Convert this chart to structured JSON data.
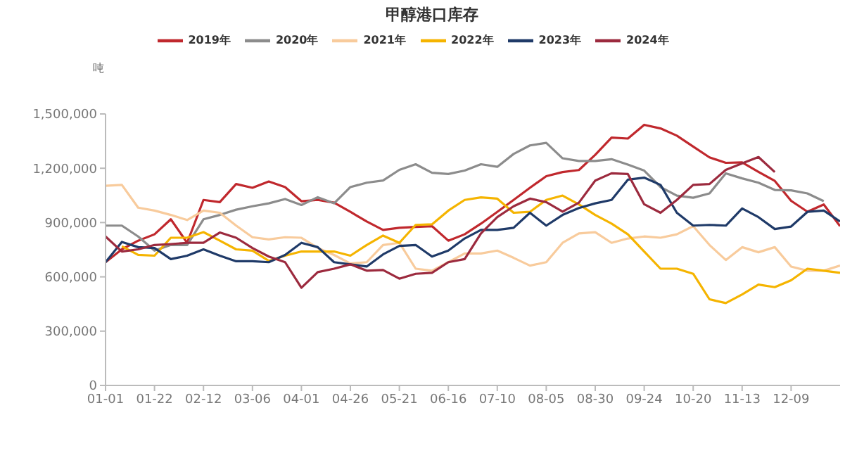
{
  "chart_data": {
    "type": "line",
    "title": "甲醇港口库存",
    "ylabel": "吨",
    "legend": "top",
    "categories": [
      "01-01",
      null,
      null,
      "01-22",
      null,
      null,
      "02-12",
      null,
      null,
      "03-06",
      null,
      null,
      "04-01",
      null,
      null,
      "04-26",
      null,
      null,
      "05-21",
      null,
      null,
      "06-16",
      null,
      null,
      "07-10",
      null,
      null,
      "08-05",
      null,
      null,
      "08-30",
      null,
      null,
      "09-24",
      null,
      null,
      "10-20",
      null,
      null,
      "11-13",
      null,
      null,
      "12-09",
      null,
      null,
      null
    ],
    "ylim": [
      0,
      1500000
    ],
    "yticks": [
      0,
      {
        "value": 300000,
        "label": "300,000"
      },
      {
        "value": 600000,
        "label": "600,000"
      },
      {
        "value": 900000,
        "label": "900,000"
      },
      {
        "value": 1200000,
        "label": "1,200,000"
      },
      {
        "value": 1500000,
        "label": "1,500,000"
      }
    ],
    "series": [
      {
        "name": "2019年",
        "color": "#c0282d",
        "values": [
          681000,
          752000,
          800000,
          835000,
          918000,
          788000,
          1025000,
          1013000,
          1113000,
          1092000,
          1127000,
          1096000,
          1018000,
          1025000,
          1010000,
          959000,
          906000,
          859000,
          871000,
          876000,
          880000,
          800000,
          835000,
          894000,
          959000,
          1025000,
          1092000,
          1156000,
          1179000,
          1190000,
          1274000,
          1369000,
          1364000,
          1440000,
          1420000,
          1380000,
          1320000,
          1260000,
          1230000,
          1232000,
          1180000,
          1130000,
          1020000,
          960000,
          1000000,
          880000
        ]
      },
      {
        "name": "2020年",
        "color": "#8c8c8c",
        "values": [
          883000,
          883000,
          823000,
          745000,
          776000,
          776000,
          918000,
          942000,
          971000,
          990000,
          1006000,
          1030000,
          997000,
          1040000,
          1006000,
          1096000,
          1120000,
          1132000,
          1191000,
          1222000,
          1175000,
          1168000,
          1187000,
          1222000,
          1208000,
          1279000,
          1326000,
          1340000,
          1255000,
          1240000,
          1240000,
          1250000,
          1220000,
          1187000,
          1096000,
          1049000,
          1037000,
          1061000,
          1172000,
          1144000,
          1120000,
          1080000,
          1078000,
          1061000,
          1018000,
          null
        ]
      },
      {
        "name": "2021年",
        "color": "#f8cb9c",
        "values": [
          1103000,
          1108000,
          982000,
          966000,
          942000,
          914000,
          966000,
          954000,
          883000,
          819000,
          807000,
          819000,
          816000,
          760000,
          721000,
          674000,
          681000,
          776000,
          788000,
          645000,
          634000,
          681000,
          729000,
          729000,
          745000,
          705000,
          662000,
          681000,
          788000,
          840000,
          847000,
          788000,
          812000,
          823000,
          816000,
          835000,
          880000,
          776000,
          693000,
          764000,
          736000,
          764000,
          657000,
          634000,
          634000,
          662000
        ]
      },
      {
        "name": "2022年",
        "color": "#f5b400",
        "values": [
          null,
          769000,
          721000,
          717000,
          816000,
          816000,
          847000,
          800000,
          752000,
          745000,
          688000,
          717000,
          740000,
          740000,
          740000,
          717000,
          776000,
          828000,
          788000,
          887000,
          890000,
          966000,
          1025000,
          1039000,
          1032000,
          954000,
          959000,
          1025000,
          1049000,
          1000000,
          942000,
          894000,
          835000,
          740000,
          645000,
          645000,
          617000,
          476000,
          455000,
          503000,
          557000,
          543000,
          581000,
          645000,
          634000,
          622000
        ]
      },
      {
        "name": "2023年",
        "color": "#1f3a68",
        "values": [
          681000,
          793000,
          764000,
          759000,
          698000,
          717000,
          752000,
          717000,
          686000,
          686000,
          681000,
          721000,
          788000,
          764000,
          681000,
          669000,
          657000,
          724000,
          771000,
          776000,
          712000,
          745000,
          812000,
          859000,
          859000,
          871000,
          954000,
          883000,
          942000,
          980000,
          1006000,
          1025000,
          1137000,
          1148000,
          1108000,
          954000,
          883000,
          887000,
          883000,
          978000,
          930000,
          864000,
          878000,
          959000,
          966000,
          906000
        ]
      },
      {
        "name": "2024年",
        "color": "#9c2a3e",
        "values": [
          823000,
          740000,
          752000,
          776000,
          781000,
          788000,
          788000,
          845000,
          816000,
          759000,
          712000,
          681000,
          540000,
          626000,
          645000,
          669000,
          634000,
          638000,
          590000,
          617000,
          622000,
          681000,
          698000,
          840000,
          930000,
          990000,
          1032000,
          1013000,
          960000,
          1010000,
          1132000,
          1172000,
          1168000,
          1001000,
          954000,
          1025000,
          1108000,
          1113000,
          1191000,
          1227000,
          1262000,
          1179000,
          null,
          null,
          null,
          null
        ]
      }
    ]
  }
}
